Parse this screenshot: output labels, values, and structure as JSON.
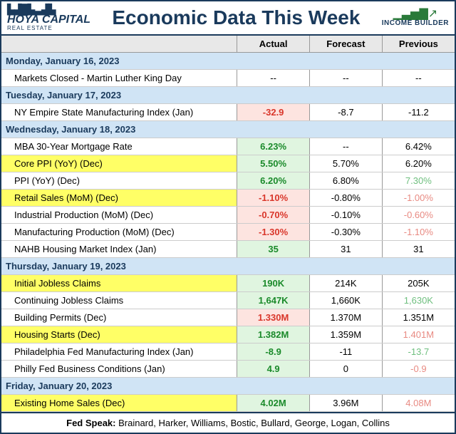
{
  "colors": {
    "border": "#1a3a5c",
    "headerRow": "#d0e4f5",
    "thBg": "#e8e8e8",
    "highlight": "#ffff66",
    "actualGreen": "#e0f5e0",
    "actualRed": "#fde4e0",
    "pos": "#1a8a2a",
    "neg": "#d9362a",
    "posLight": "#6fbf7f",
    "negLight": "#e88a82"
  },
  "title": "Economic Data This Week",
  "logoLeft": {
    "line1": "HOYA CAPITAL",
    "line2": "REAL ESTATE"
  },
  "logoRight": {
    "line1": "INCOME BUILDER"
  },
  "columns": [
    "",
    "Actual",
    "Forecast",
    "Previous"
  ],
  "footer": {
    "label": "Fed Speak:",
    "text": " Brainard, Harker, Williams, Bostic, Bullard, George, Logan, Collins"
  },
  "d0": "Monday, January 16, 2023",
  "d1": "Tuesday, January 17, 2023",
  "d2": "Wednesday, January 18, 2023",
  "d3": "Thursday, January 19, 2023",
  "d4": "Friday, January 20, 2023",
  "r0": {
    "name": "Markets Closed - Martin Luther King Day",
    "a": "--",
    "f": "--",
    "p": "--"
  },
  "r1": {
    "name": "NY Empire State Manufacturing Index (Jan)",
    "a": "-32.9",
    "f": "-8.7",
    "p": "-11.2"
  },
  "r2": {
    "name": "MBA 30-Year Mortgage Rate",
    "a": "6.23%",
    "f": "--",
    "p": "6.42%"
  },
  "r3": {
    "name": "Core PPI (YoY) (Dec)",
    "a": "5.50%",
    "f": "5.70%",
    "p": "6.20%"
  },
  "r4": {
    "name": "PPI (YoY) (Dec)",
    "a": "6.20%",
    "f": "6.80%",
    "p": "7.30%"
  },
  "r5": {
    "name": "Retail Sales (MoM) (Dec)",
    "a": "-1.10%",
    "f": "-0.80%",
    "p": "-1.00%"
  },
  "r6": {
    "name": "Industrial Production (MoM) (Dec)",
    "a": "-0.70%",
    "f": "-0.10%",
    "p": "-0.60%"
  },
  "r7": {
    "name": "Manufacturing Production (MoM) (Dec)",
    "a": "-1.30%",
    "f": "-0.30%",
    "p": "-1.10%"
  },
  "r8": {
    "name": "NAHB Housing Market Index (Jan)",
    "a": "35",
    "f": "31",
    "p": "31"
  },
  "r9": {
    "name": "Initial Jobless Claims",
    "a": "190K",
    "f": "214K",
    "p": "205K"
  },
  "r10": {
    "name": "Continuing Jobless Claims",
    "a": "1,647K",
    "f": "1,660K",
    "p": "1,630K"
  },
  "r11": {
    "name": "Building Permits (Dec)",
    "a": "1.330M",
    "f": "1.370M",
    "p": "1.351M"
  },
  "r12": {
    "name": "Housing Starts (Dec)",
    "a": "1.382M",
    "f": "1.359M",
    "p": "1.401M"
  },
  "r13": {
    "name": "Philadelphia Fed Manufacturing Index (Jan)",
    "a": "-8.9",
    "f": "-11",
    "p": "-13.7"
  },
  "r14": {
    "name": "Philly Fed Business Conditions (Jan)",
    "a": "4.9",
    "f": "0",
    "p": "-0.9"
  },
  "r15": {
    "name": "Existing Home Sales (Dec)",
    "a": "4.02M",
    "f": "3.96M",
    "p": "4.08M"
  }
}
